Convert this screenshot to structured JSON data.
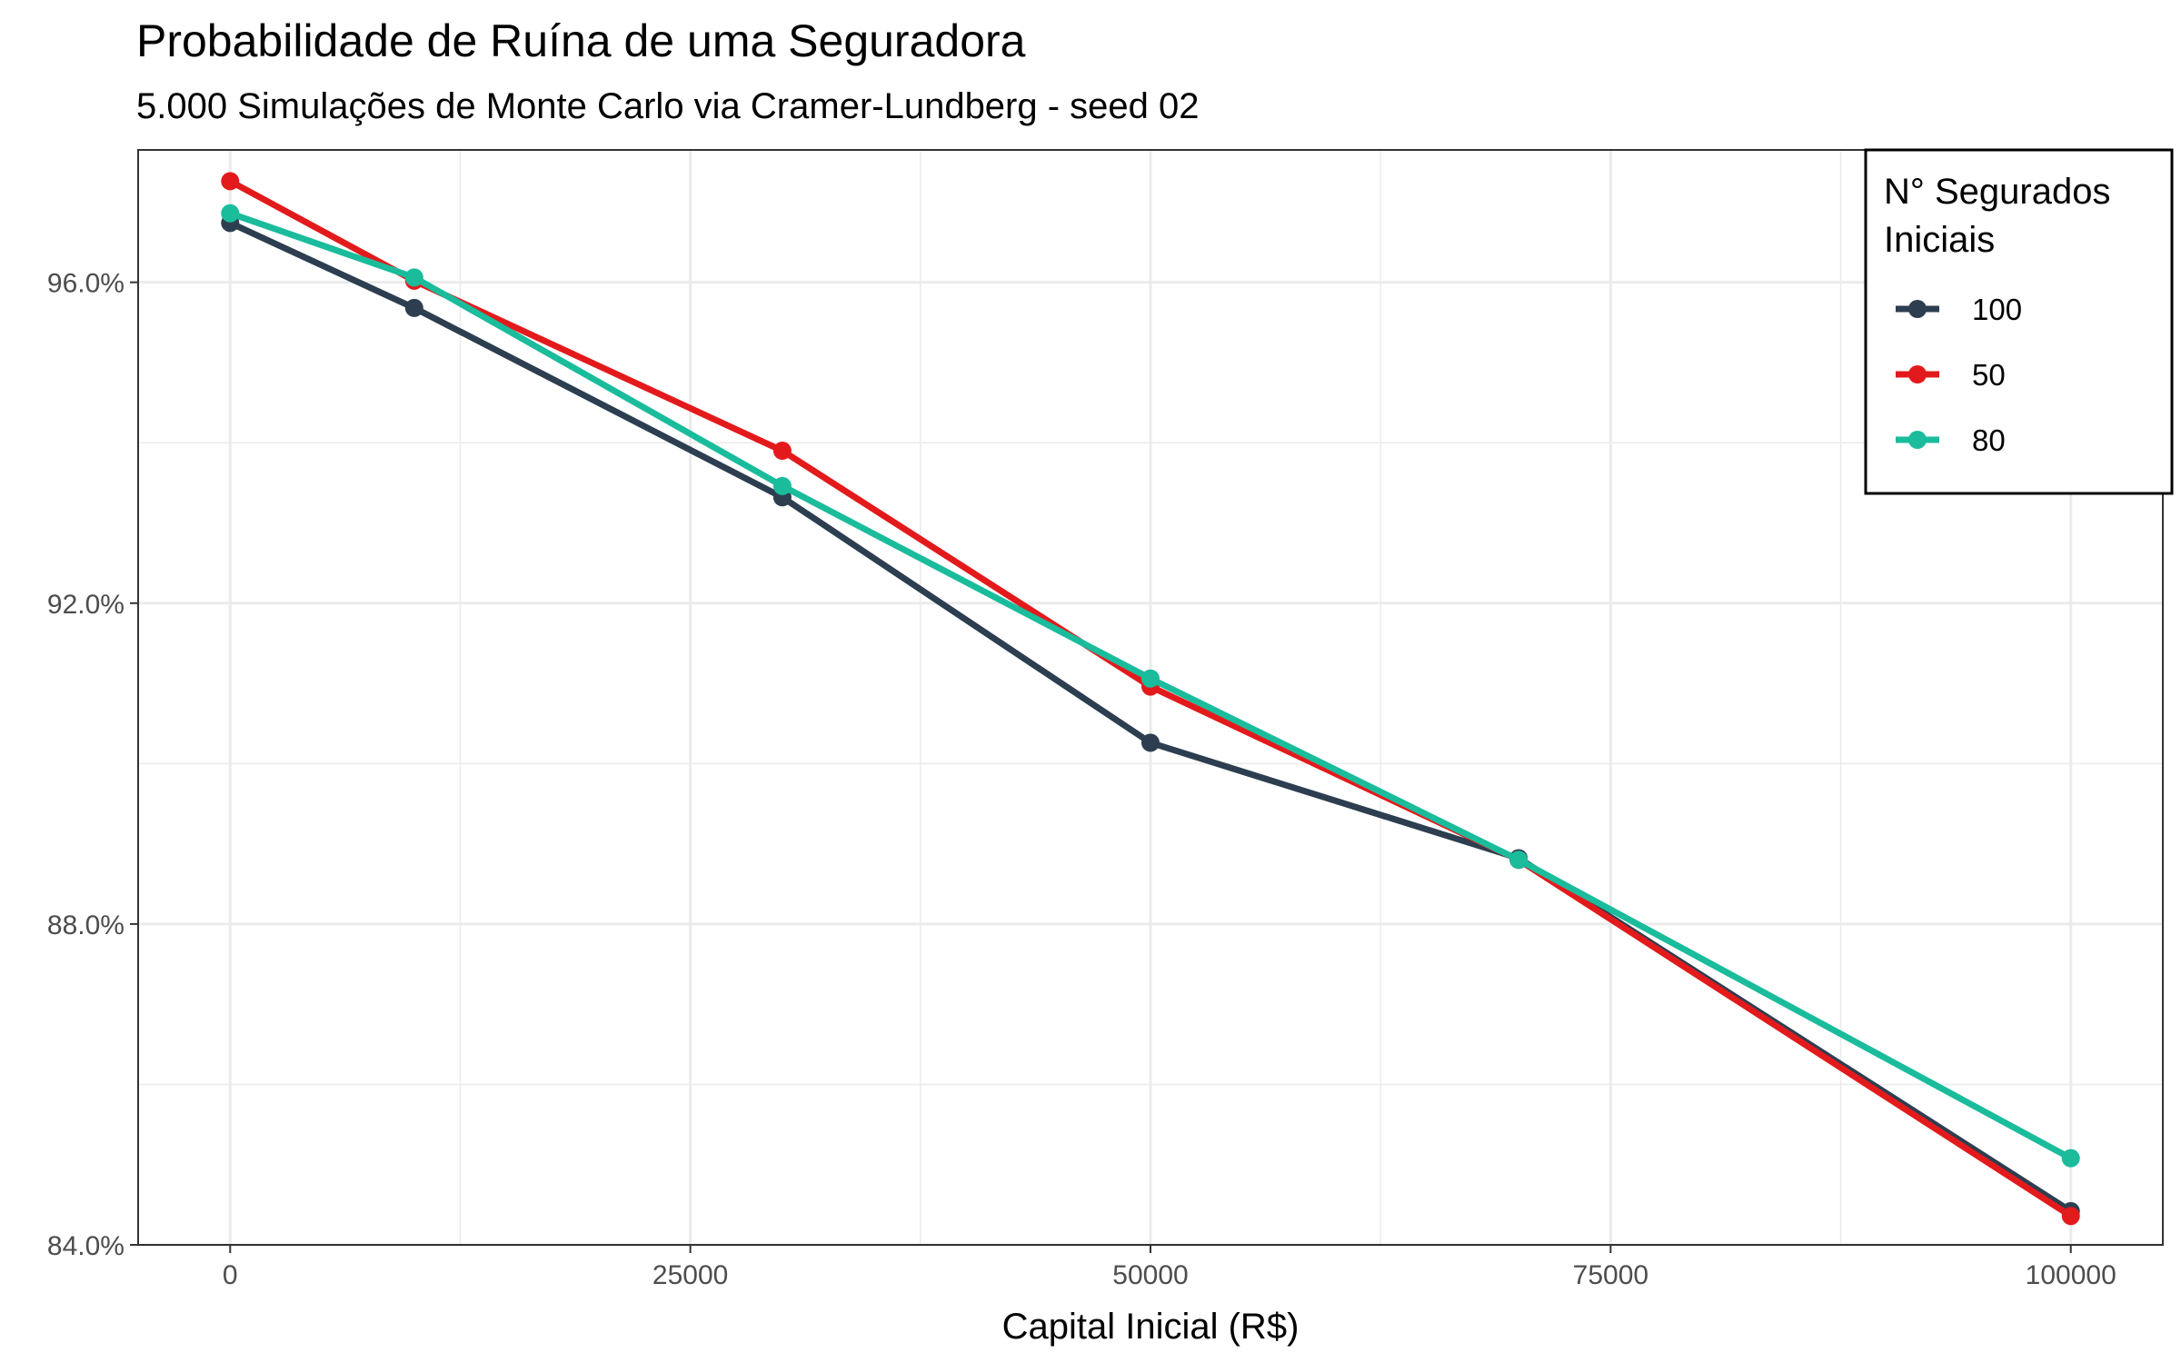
{
  "chart_data": {
    "type": "line",
    "title": "Probabilidade de Ruína de uma Seguradora",
    "subtitle": "5.000 Simulações de Monte Carlo via Cramer-Lundberg - seed 02",
    "xlabel": "Capital Inicial (R$)",
    "ylabel": "",
    "x": [
      0,
      10000,
      30000,
      50000,
      70000,
      100000
    ],
    "xlim": [
      -5000,
      105000
    ],
    "ylim": [
      0.84,
      0.9765
    ],
    "xticks": [
      0,
      25000,
      50000,
      75000,
      100000
    ],
    "xtick_labels": [
      "0",
      "25000",
      "50000",
      "75000",
      "100000"
    ],
    "yticks": [
      0.84,
      0.88,
      0.92,
      0.96
    ],
    "ytick_labels": [
      "84.0%",
      "88.0%",
      "92.0%",
      "96.0%"
    ],
    "grid": true,
    "legend": {
      "title_lines": [
        "N° Segurados",
        "Iniciais"
      ],
      "position": "top-right"
    },
    "series": [
      {
        "name": "100",
        "color": "#2c3e50",
        "values": [
          0.9674,
          0.9568,
          0.9332,
          0.9026,
          0.8882,
          0.8442
        ]
      },
      {
        "name": "50",
        "color": "#e31a1c",
        "values": [
          0.9726,
          0.9602,
          0.939,
          0.9096,
          0.888,
          0.8436
        ]
      },
      {
        "name": "80",
        "color": "#1abc9c",
        "values": [
          0.9686,
          0.9606,
          0.9346,
          0.9106,
          0.888,
          0.8508
        ]
      }
    ]
  }
}
